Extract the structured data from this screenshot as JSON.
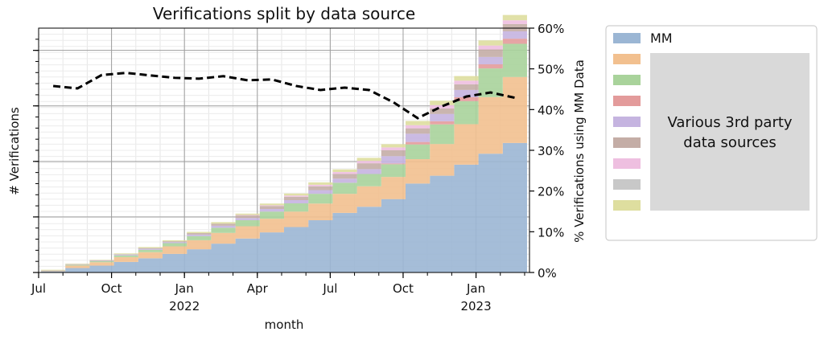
{
  "chart_data": {
    "type": "area",
    "stacked": true,
    "title": "Verifications split by data source",
    "xlabel": "month",
    "ylabel": "# Verifications",
    "y2label": "% Verifications using MM Data",
    "x_ticks": [
      {
        "label": "Jul",
        "sub": "",
        "date": "2021-07"
      },
      {
        "label": "Oct",
        "sub": "",
        "date": "2021-10"
      },
      {
        "label": "Jan",
        "sub": "2022",
        "date": "2022-01"
      },
      {
        "label": "Apr",
        "sub": "",
        "date": "2022-04"
      },
      {
        "label": "Jul",
        "sub": "",
        "date": "2022-07"
      },
      {
        "label": "Oct",
        "sub": "",
        "date": "2022-10"
      },
      {
        "label": "Jan",
        "sub": "2023",
        "date": "2023-01"
      }
    ],
    "y2_ticks": [
      "0%",
      "10%",
      "20%",
      "30%",
      "40%",
      "50%",
      "60%"
    ],
    "y2lim": [
      0,
      60
    ],
    "ylim": [
      0,
      1
    ],
    "y_tick_labels_shown": false,
    "grid": true,
    "months": [
      "2021-07",
      "2021-08",
      "2021-09",
      "2021-10",
      "2021-11",
      "2021-12",
      "2022-01",
      "2022-02",
      "2022-03",
      "2022-04",
      "2022-05",
      "2022-06",
      "2022-07",
      "2022-08",
      "2022-09",
      "2022-10",
      "2022-11",
      "2022-12",
      "2023-01",
      "2023-02"
    ],
    "series": [
      {
        "name": "MM",
        "color": "#9bb6d4",
        "values": [
          0.005,
          0.018,
          0.028,
          0.043,
          0.058,
          0.076,
          0.095,
          0.118,
          0.139,
          0.164,
          0.186,
          0.214,
          0.244,
          0.269,
          0.3,
          0.364,
          0.396,
          0.441,
          0.486,
          0.53
        ]
      },
      {
        "name": "",
        "color": "#f2c08f",
        "values": [
          0.003,
          0.01,
          0.014,
          0.02,
          0.025,
          0.031,
          0.037,
          0.044,
          0.05,
          0.056,
          0.063,
          0.068,
          0.078,
          0.084,
          0.091,
          0.1,
          0.13,
          0.166,
          0.232,
          0.27
        ]
      },
      {
        "name": "",
        "color": "#a9d39b",
        "values": [
          0.001,
          0.003,
          0.004,
          0.007,
          0.01,
          0.013,
          0.017,
          0.021,
          0.025,
          0.029,
          0.034,
          0.04,
          0.045,
          0.05,
          0.052,
          0.06,
          0.08,
          0.094,
          0.117,
          0.136
        ]
      },
      {
        "name": "",
        "color": "#e39b9b",
        "values": [
          0,
          0,
          0,
          0,
          0,
          0,
          0,
          0,
          0,
          0,
          0,
          0,
          0,
          0,
          0.003,
          0.01,
          0.013,
          0.016,
          0.017,
          0.021
        ]
      },
      {
        "name": "",
        "color": "#c5b4e0",
        "values": [
          0,
          0.001,
          0.002,
          0.003,
          0.004,
          0.004,
          0.006,
          0.008,
          0.009,
          0.011,
          0.013,
          0.015,
          0.017,
          0.02,
          0.03,
          0.034,
          0.03,
          0.03,
          0.03,
          0.03
        ]
      },
      {
        "name": "",
        "color": "#c4ada6",
        "values": [
          0.001,
          0.002,
          0.002,
          0.002,
          0.003,
          0.004,
          0.006,
          0.009,
          0.01,
          0.012,
          0.014,
          0.016,
          0.019,
          0.024,
          0.024,
          0.022,
          0.022,
          0.023,
          0.031,
          0.03
        ]
      },
      {
        "name": "",
        "color": "#eebfe0",
        "values": [
          0,
          0,
          0,
          0,
          0,
          0,
          0,
          0,
          0.002,
          0.003,
          0.005,
          0.006,
          0.008,
          0.01,
          0.012,
          0.013,
          0.014,
          0.015,
          0.016,
          0.015
        ]
      },
      {
        "name": "",
        "color": "#c8c8c8",
        "values": [
          0,
          0,
          0,
          0,
          0,
          0,
          0,
          0,
          0,
          0,
          0,
          0,
          0,
          0,
          0,
          0,
          0,
          0,
          0,
          0
        ]
      },
      {
        "name": "",
        "color": "#dede9f",
        "values": [
          0.001,
          0.002,
          0.002,
          0.003,
          0.004,
          0.004,
          0.005,
          0.006,
          0.006,
          0.007,
          0.008,
          0.01,
          0.011,
          0.012,
          0.013,
          0.017,
          0.018,
          0.019,
          0.021,
          0.022
        ]
      }
    ],
    "pct_mm_line": {
      "style": "dashed",
      "color": "#000000",
      "values": [
        45.8,
        45.2,
        48.5,
        49.0,
        48.4,
        47.8,
        47.6,
        48.2,
        47.2,
        47.4,
        45.8,
        44.8,
        45.4,
        44.8,
        41.8,
        37.9,
        40.8,
        43.2,
        44.2,
        42.9
      ]
    },
    "legend": {
      "placement": "outside-right",
      "labeled_entry": "MM",
      "group_note": "Various 3rd party data sources"
    }
  }
}
